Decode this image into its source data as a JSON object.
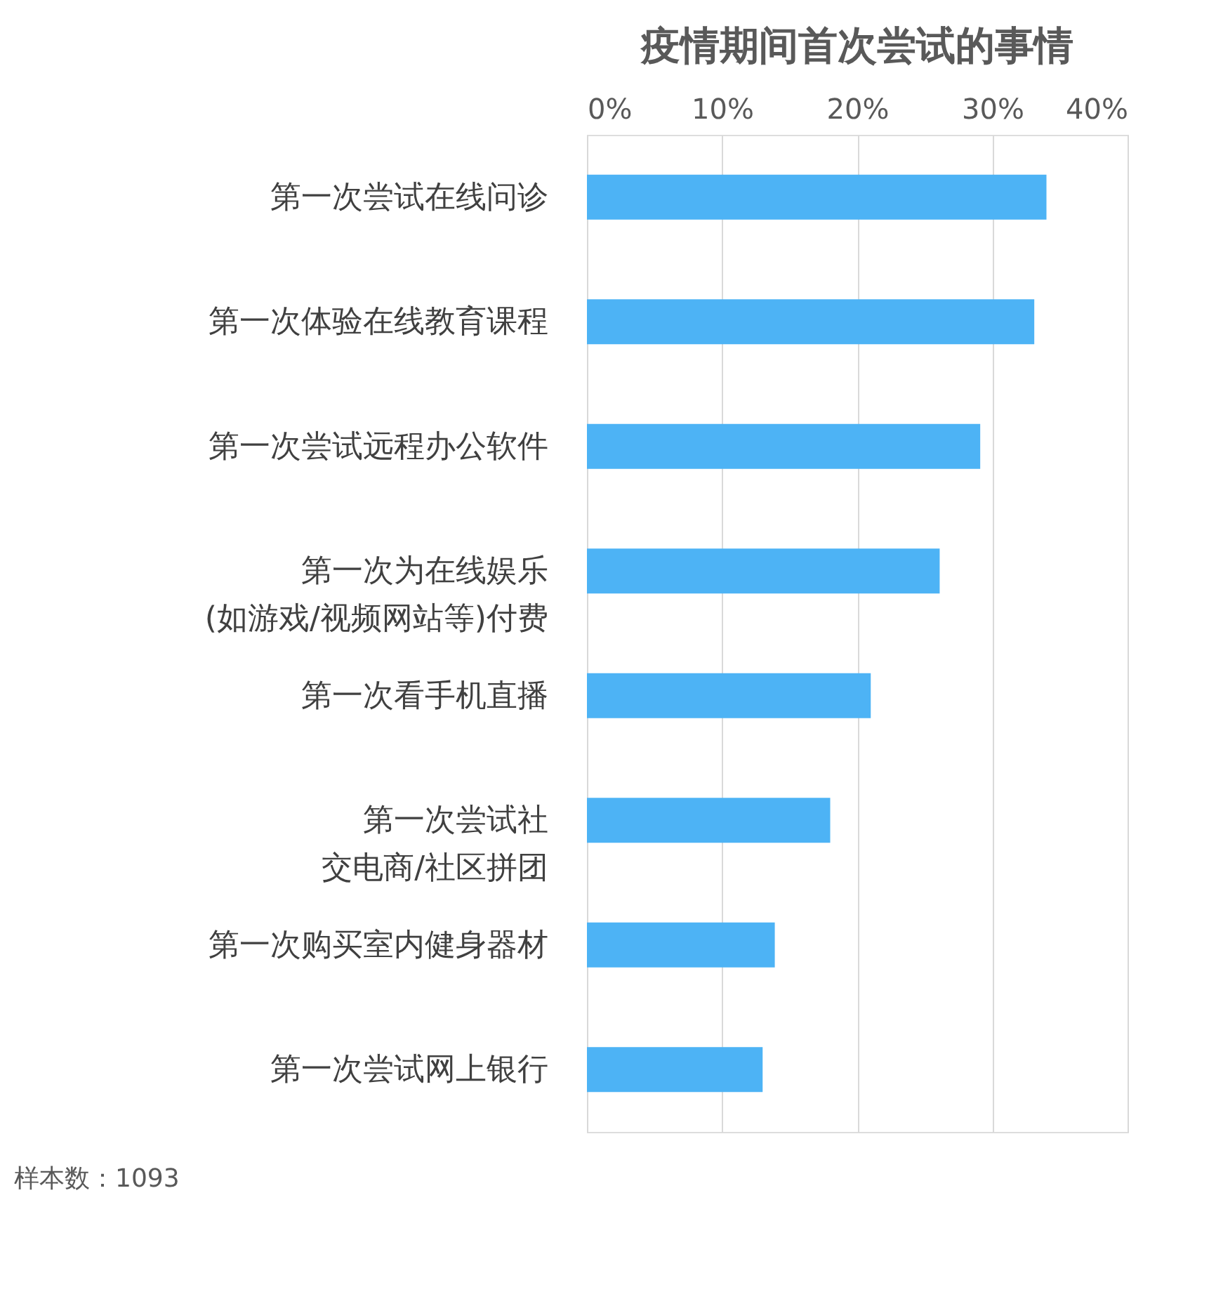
{
  "chart_data": {
    "type": "bar",
    "orientation": "horizontal",
    "title": "疫情期间首次尝试的事情",
    "categories": [
      "第一次尝试在线问诊",
      "第一次体验在线教育课程",
      "第一次尝试远程办公软件",
      "第一次为在线娱乐(如游戏/视频网站等)付费",
      "第一次看手机直播",
      "第一次尝试社交电商/社区拼团",
      "第一次购买室内健身器材",
      "第一次尝试网上银行"
    ],
    "values": [
      34.0,
      33.1,
      29.1,
      26.1,
      21.0,
      18.0,
      13.9,
      13.0
    ],
    "color": "#4db3f5",
    "xlim": [
      0,
      40
    ],
    "xticks": [
      {
        "value": 0,
        "label": "0%"
      },
      {
        "value": 10,
        "label": "10%"
      },
      {
        "value": 20,
        "label": "20%"
      },
      {
        "value": 30,
        "label": "30%"
      },
      {
        "value": 40,
        "label": "40%"
      }
    ],
    "grid": "x",
    "annotations": [
      "样本数：1093"
    ]
  }
}
